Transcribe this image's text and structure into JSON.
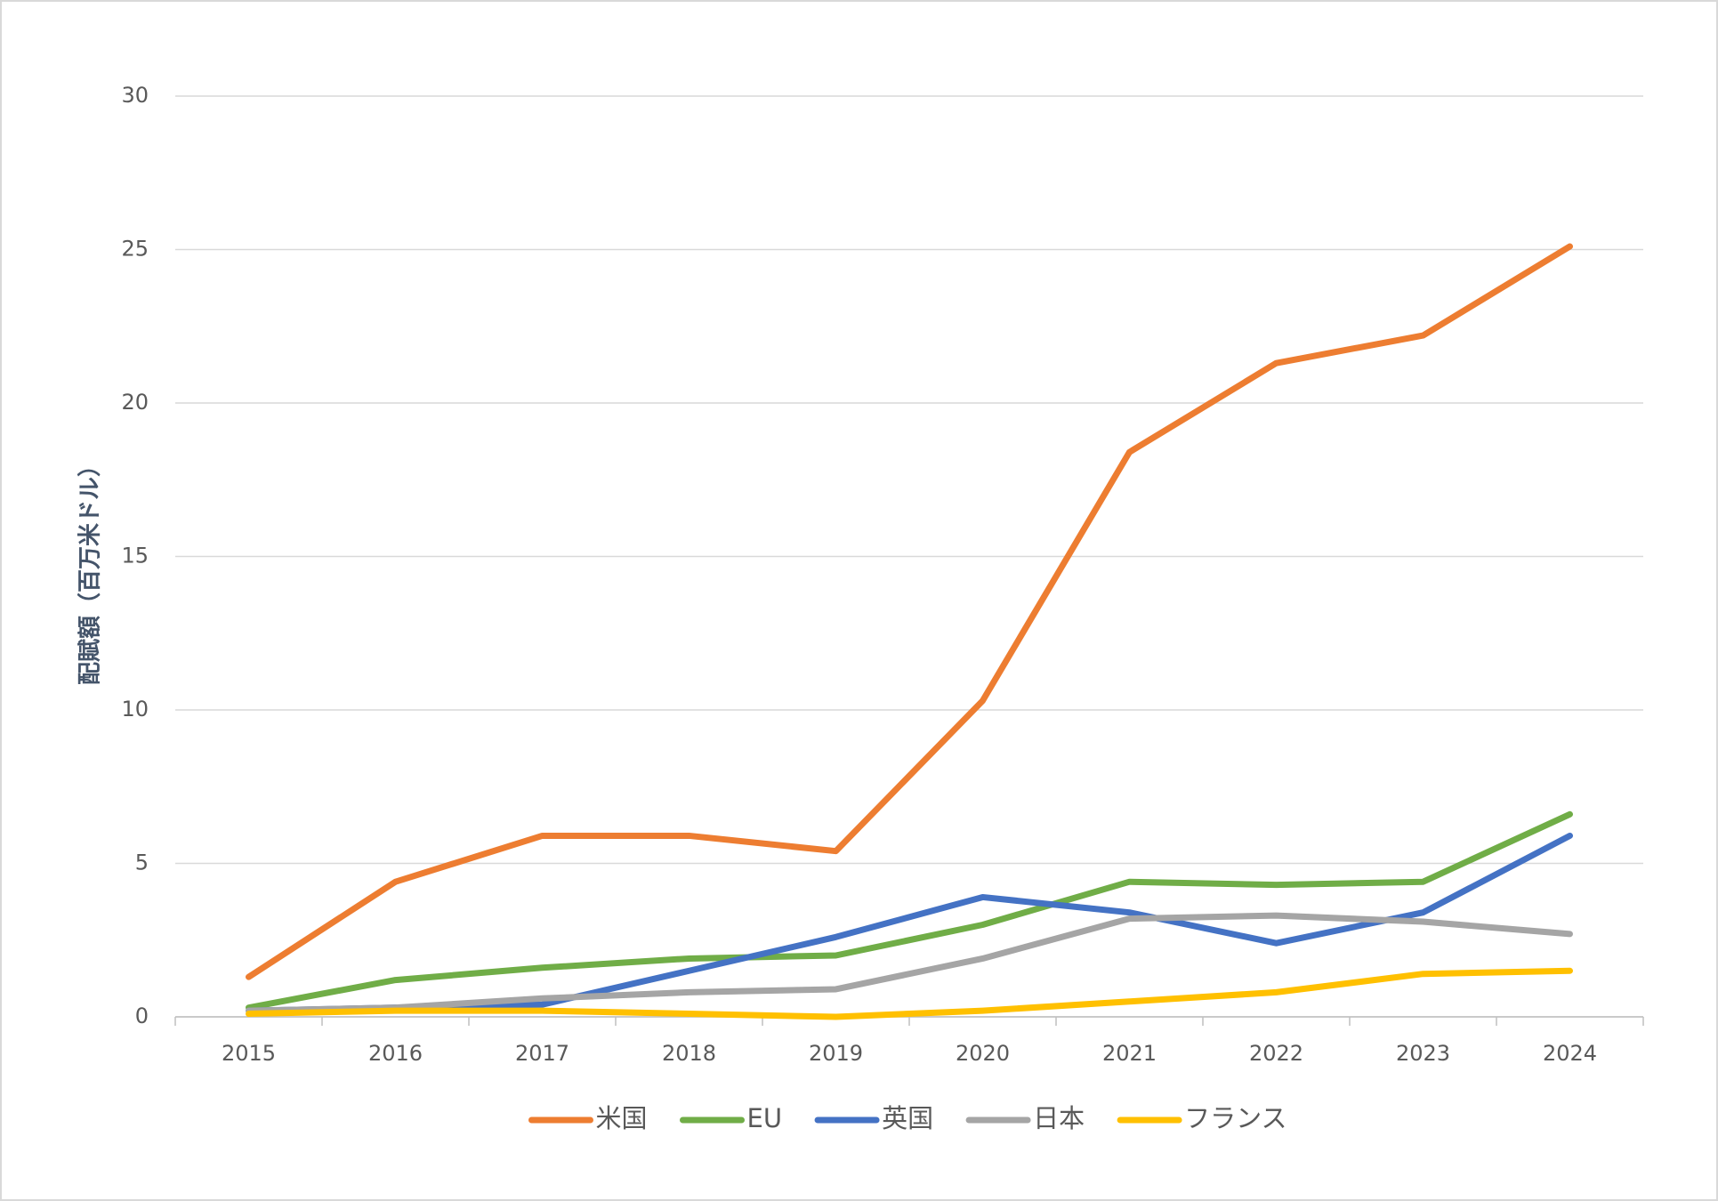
{
  "chart_data": {
    "type": "line",
    "y_label": "配賦額（百万米ドル）",
    "categories": [
      "2015",
      "2016",
      "2017",
      "2018",
      "2019",
      "2020",
      "2021",
      "2022",
      "2023",
      "2024"
    ],
    "series": [
      {
        "name": "米国",
        "color": "#ed7d31",
        "values": [
          1.3,
          4.4,
          5.9,
          5.9,
          5.4,
          10.3,
          18.4,
          21.3,
          22.2,
          25.1
        ]
      },
      {
        "name": "EU",
        "color": "#70ad47",
        "values": [
          0.3,
          1.2,
          1.6,
          1.9,
          2.0,
          3.0,
          4.4,
          4.3,
          4.4,
          6.6
        ]
      },
      {
        "name": "英国",
        "color": "#4472c4",
        "values": [
          0.2,
          0.3,
          0.4,
          1.5,
          2.6,
          3.9,
          3.4,
          2.4,
          3.4,
          5.9
        ]
      },
      {
        "name": "日本",
        "color": "#a5a5a5",
        "values": [
          0.2,
          0.3,
          0.6,
          0.8,
          0.9,
          1.9,
          3.2,
          3.3,
          3.1,
          2.7
        ]
      },
      {
        "name": "フランス",
        "color": "#ffc000",
        "values": [
          0.1,
          0.2,
          0.2,
          0.1,
          0.0,
          0.2,
          0.5,
          0.8,
          1.4,
          1.5
        ]
      }
    ],
    "ylim": [
      0,
      30
    ],
    "yticks": [
      0,
      5,
      10,
      15,
      20,
      25,
      30
    ],
    "grid": true,
    "legend": "bottom"
  }
}
